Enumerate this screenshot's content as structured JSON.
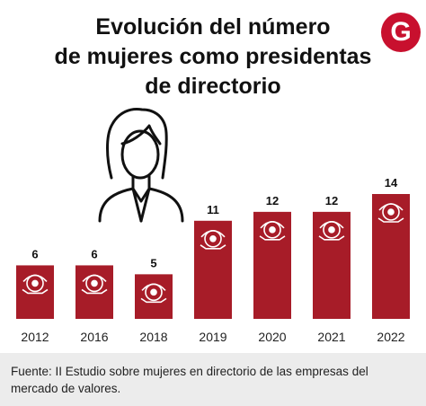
{
  "title_lines": [
    "Evolución del número",
    "de mujeres como presidentas",
    "de directorio"
  ],
  "logo_letter": "G",
  "source": "Fuente: II Estudio sobre mujeres en directorio de las empresas del mercado de valores.",
  "colors": {
    "bar": "#a71c28",
    "text": "#111111",
    "logo": "#c8102e",
    "source_bg": "#ececec"
  },
  "icons": [
    "woman-avatar-icon",
    "seal-emblem-icon"
  ],
  "chart_data": {
    "type": "bar",
    "categories": [
      "2012",
      "2016",
      "2018",
      "2019",
      "2020",
      "2021",
      "2022"
    ],
    "values": [
      6,
      6,
      5,
      11,
      12,
      12,
      14
    ],
    "title": "Evolución del número de mujeres como presidentas de directorio",
    "xlabel": "",
    "ylabel": "",
    "ylim": [
      0,
      14
    ],
    "grid": false,
    "legend": "none"
  }
}
